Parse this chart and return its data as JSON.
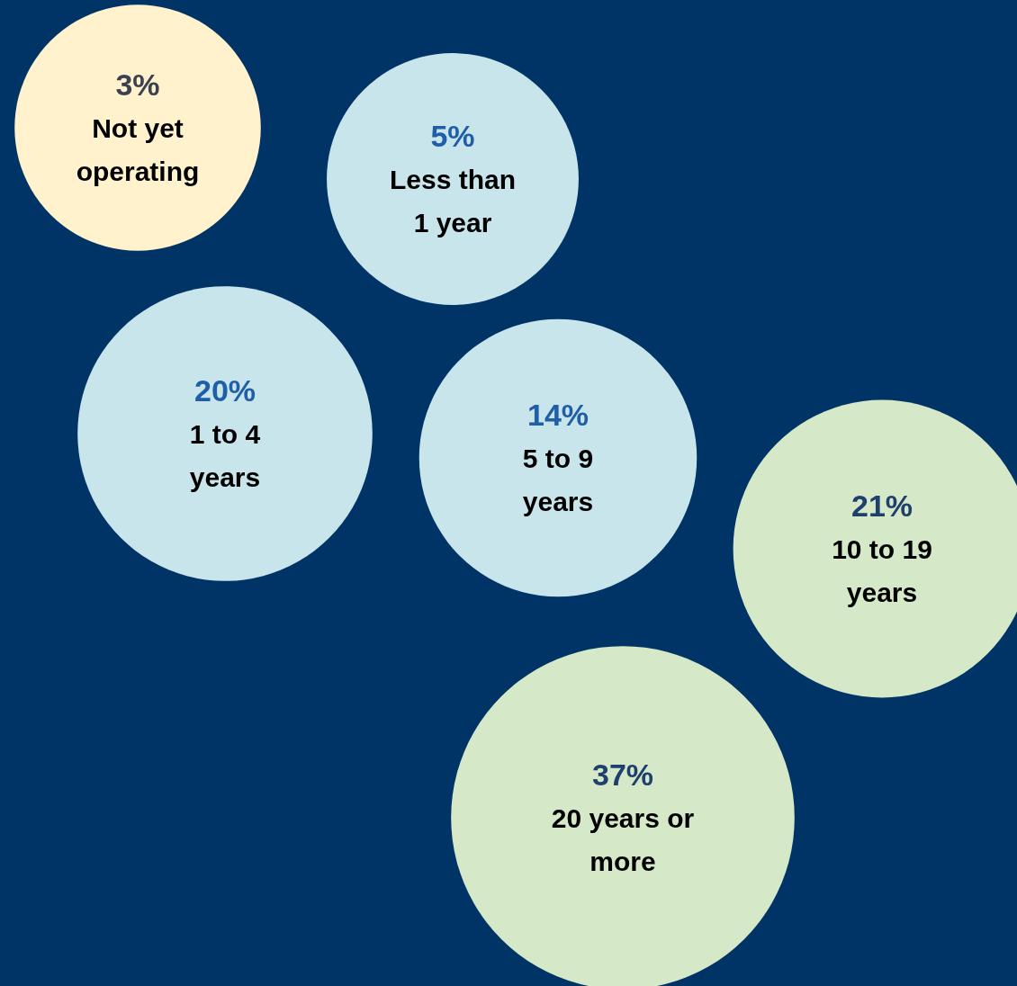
{
  "chart_data": {
    "type": "other",
    "categories": [
      "Not yet operating",
      "Less than 1 year",
      "1 to 4 years",
      "5 to 9 years",
      "10 to 19 years",
      "20 years or more"
    ],
    "values": [
      3,
      5,
      20,
      14,
      21,
      37
    ],
    "value_labels": [
      "3%",
      "5%",
      "20%",
      "14%",
      "21%",
      "37%"
    ],
    "colors": [
      "#fff2cc",
      "#c9e5ec",
      "#c9e5ec",
      "#c9e5ec",
      "#d5e8c8",
      "#d5e8c8"
    ]
  }
}
